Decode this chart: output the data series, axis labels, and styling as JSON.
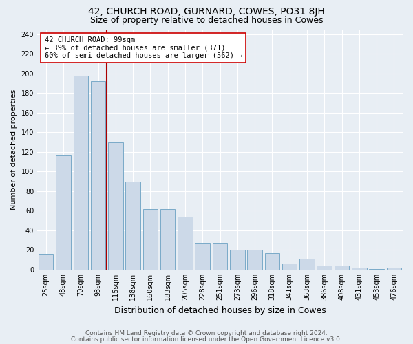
{
  "title": "42, CHURCH ROAD, GURNARD, COWES, PO31 8JH",
  "subtitle": "Size of property relative to detached houses in Cowes",
  "xlabel": "Distribution of detached houses by size in Cowes",
  "ylabel": "Number of detached properties",
  "categories": [
    "25sqm",
    "48sqm",
    "70sqm",
    "93sqm",
    "115sqm",
    "138sqm",
    "160sqm",
    "183sqm",
    "205sqm",
    "228sqm",
    "251sqm",
    "273sqm",
    "296sqm",
    "318sqm",
    "341sqm",
    "363sqm",
    "386sqm",
    "408sqm",
    "431sqm",
    "453sqm",
    "476sqm"
  ],
  "values": [
    16,
    116,
    198,
    192,
    130,
    90,
    62,
    62,
    54,
    27,
    27,
    20,
    20,
    17,
    6,
    11,
    4,
    4,
    2,
    1,
    2
  ],
  "bar_color": "#ccd9e8",
  "bar_edge_color": "#7aaac8",
  "vline_x_index": 3.5,
  "vline_color": "#aa0000",
  "annotation_line1": "42 CHURCH ROAD: 99sqm",
  "annotation_line2": "← 39% of detached houses are smaller (371)",
  "annotation_line3": "60% of semi-detached houses are larger (562) →",
  "annotation_box_color": "#ffffff",
  "annotation_box_edge": "#cc0000",
  "ylim": [
    0,
    245
  ],
  "yticks": [
    0,
    20,
    40,
    60,
    80,
    100,
    120,
    140,
    160,
    180,
    200,
    220,
    240
  ],
  "footer1": "Contains HM Land Registry data © Crown copyright and database right 2024.",
  "footer2": "Contains public sector information licensed under the Open Government Licence v3.0.",
  "background_color": "#e8eef4",
  "grid_color": "#ffffff",
  "title_fontsize": 10,
  "subtitle_fontsize": 9,
  "xlabel_fontsize": 9,
  "ylabel_fontsize": 8,
  "tick_fontsize": 7,
  "annotation_fontsize": 7.5,
  "footer_fontsize": 6.5
}
